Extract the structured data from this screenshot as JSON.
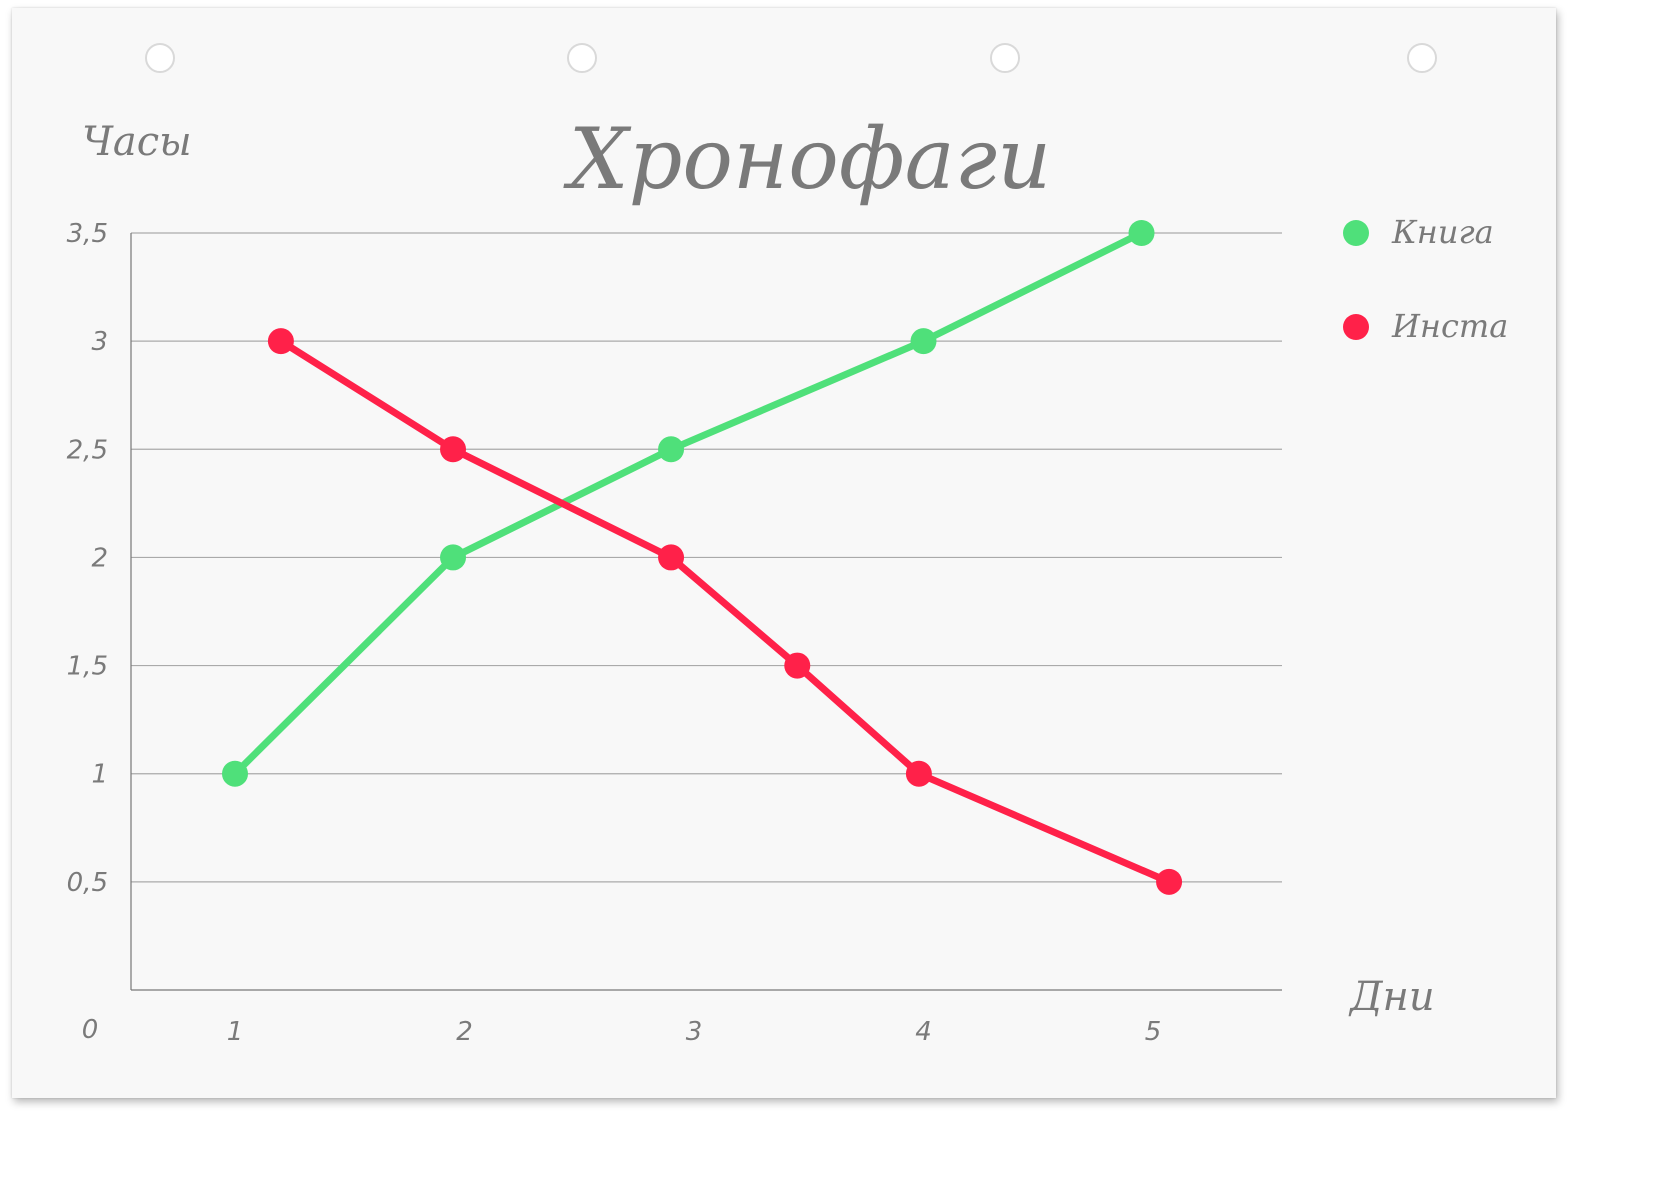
{
  "chart_data": {
    "type": "line",
    "title": "Хронофаги",
    "ylabel": "Часы",
    "xlabel": "Дни",
    "ylim": [
      0,
      3.5
    ],
    "grid": true,
    "legend_position": "right",
    "y_ticks": [
      "0",
      "0,5",
      "1",
      "1,5",
      "2",
      "2,5",
      "3",
      "3,5"
    ],
    "x_ticks": [
      "1",
      "2",
      "3",
      "4",
      "5"
    ],
    "series": [
      {
        "name": "Книга",
        "color": "#4fe07a",
        "points": [
          {
            "x": 1.0,
            "y": 1
          },
          {
            "x": 1.95,
            "y": 2
          },
          {
            "x": 2.9,
            "y": 2.5
          },
          {
            "x": 4.0,
            "y": 3
          },
          {
            "x": 4.95,
            "y": 3.5
          }
        ]
      },
      {
        "name": "Инста",
        "color": "#ff2149",
        "points": [
          {
            "x": 1.2,
            "y": 3
          },
          {
            "x": 1.95,
            "y": 2.5
          },
          {
            "x": 2.9,
            "y": 2
          },
          {
            "x": 3.45,
            "y": 1.5
          },
          {
            "x": 3.98,
            "y": 1
          },
          {
            "x": 5.07,
            "y": 0.5
          }
        ]
      }
    ]
  }
}
